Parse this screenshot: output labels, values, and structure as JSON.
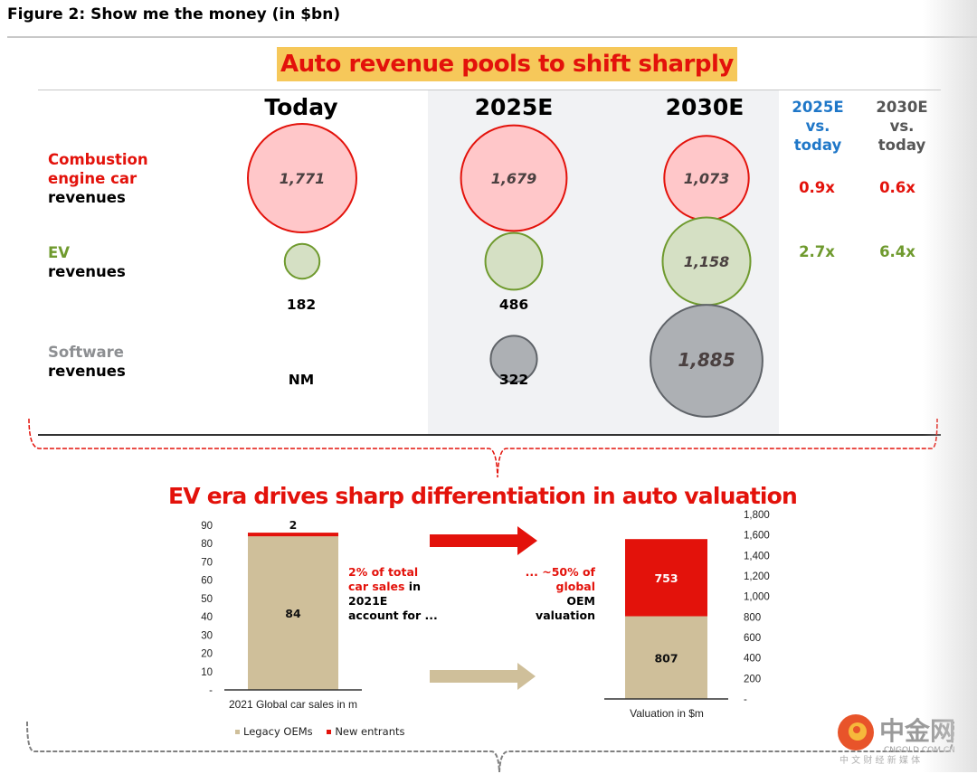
{
  "figure_title": "Figure 2: Show me the money (in $bn)",
  "headline_top": "Auto revenue pools to shift sharply",
  "headline_bottom": "EV era drives sharp differentiation in auto valuation",
  "colors": {
    "red": "#e3120b",
    "red_fill": "#ffc7c9",
    "green": "#6f9a2e",
    "green_fill": "#d5e0c4",
    "grey": "#5f6368",
    "grey_fill": "#adb0b4",
    "highlight": "#f6c85a",
    "tan": "#cfbf9a",
    "blue": "#1f77c8"
  },
  "chart_data": [
    {
      "type": "bubble",
      "title": "Auto revenue pools to shift sharply",
      "unit": "$bn",
      "columns": [
        "Today",
        "2025E",
        "2030E"
      ],
      "comparison_headers": [
        {
          "line1": "2025E",
          "line2": "vs.",
          "line3": "today"
        },
        {
          "line1": "2030E",
          "line2": "vs.",
          "line3": "today"
        }
      ],
      "rows": [
        {
          "label_colored": "Combustion engine car",
          "label_colored_line1": "Combustion",
          "label_colored_line2": "engine car",
          "label_plain": "revenues",
          "color": "red",
          "values": [
            1771,
            1679,
            1073
          ],
          "value_labels": [
            "1,771",
            "1,679",
            "1,073"
          ],
          "multiples": [
            "0.9x",
            "0.6x"
          ]
        },
        {
          "label_colored": "EV",
          "label_plain": "revenues",
          "color": "green",
          "values": [
            182,
            486,
            1158
          ],
          "value_labels": [
            "182",
            "486",
            "1,158"
          ],
          "multiples": [
            "2.7x",
            "6.4x"
          ]
        },
        {
          "label_colored": "Software",
          "label_plain": "revenues",
          "color": "grey",
          "values": [
            null,
            322,
            1885
          ],
          "value_labels": [
            "NM",
            "322",
            "1,885"
          ],
          "multiples": []
        }
      ]
    },
    {
      "type": "bar",
      "stacked": true,
      "title": "EV era drives sharp differentiation in auto valuation",
      "categories": [
        "2021 Global car sales in m"
      ],
      "xlabel": "2021 Global car sales in m",
      "ylim": [
        0,
        90
      ],
      "yticks": [
        "-",
        "10",
        "20",
        "30",
        "40",
        "50",
        "60",
        "70",
        "80",
        "90"
      ],
      "series": [
        {
          "name": "Legacy OEMs",
          "values": [
            84
          ],
          "color": "tan"
        },
        {
          "name": "New entrants",
          "values": [
            2
          ],
          "color": "red"
        }
      ],
      "annotation": {
        "red_line1": "2% of total",
        "red_line2": "car sales",
        "black_tail": " in",
        "line3": "2021E",
        "line4": "account for ..."
      }
    },
    {
      "type": "bar",
      "stacked": true,
      "categories": [
        "Valuation in $m"
      ],
      "xlabel": "Valuation in $m",
      "ylim": [
        0,
        1800
      ],
      "yticks": [
        "-",
        "200",
        "400",
        "600",
        "800",
        "1,000",
        "1,200",
        "1,400",
        "1,600",
        "1,800"
      ],
      "axis_side": "right",
      "series": [
        {
          "name": "Legacy OEMs",
          "values": [
            807
          ],
          "color": "tan"
        },
        {
          "name": "New entrants",
          "values": [
            753
          ],
          "color": "red"
        }
      ],
      "annotation": {
        "red_line1": "... ~50% of",
        "red_line2": "global",
        "line3": "OEM",
        "line4": "valuation"
      }
    }
  ],
  "legend": [
    {
      "label": "Legacy OEMs",
      "color": "tan"
    },
    {
      "label": "New entrants",
      "color": "red"
    }
  ],
  "watermark": {
    "brand": "中金网",
    "domain": "CNGOLD.COM.CN",
    "tagline": "中 文 财 经 新 媒 体"
  }
}
